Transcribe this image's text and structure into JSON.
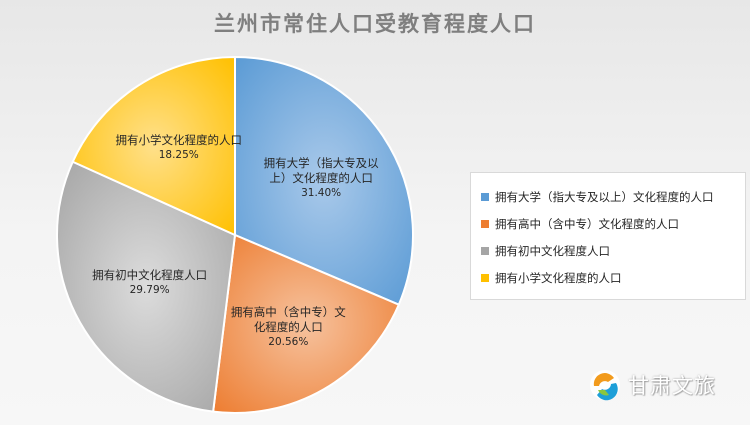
{
  "chart_data": {
    "type": "pie",
    "title": "兰州市常住人口受教育程度人口",
    "slices": [
      {
        "label": "拥有大学（指大专及以上）文化程度的人口",
        "value": 31.4,
        "display": "31.40%",
        "color": "#5b9bd5"
      },
      {
        "label": "拥有高中（含中专）文化程度的人口",
        "value": 20.56,
        "display": "20.56%",
        "color": "#ed7d31"
      },
      {
        "label": "拥有初中文化程度人口",
        "value": 29.79,
        "display": "29.79%",
        "color": "#a5a5a5"
      },
      {
        "label": "拥有小学文化程度的人口",
        "value": 18.25,
        "display": "18.25%",
        "color": "#ffc000"
      }
    ],
    "slice_label_texts": [
      [
        "拥有大学（指大专及以",
        "上）文化程度的人口"
      ],
      [
        "拥有高中（含中专）文",
        "化程度的人口"
      ],
      [
        "拥有初中文化程度人口"
      ],
      [
        "拥有小学文化程度的人口"
      ]
    ],
    "legend_position": "right"
  },
  "watermark": {
    "text": "甘肃文旅",
    "icon": "gansu-culture-tourism-logo-icon"
  }
}
